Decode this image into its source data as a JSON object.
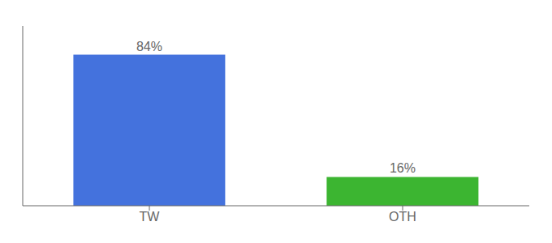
{
  "chart_data": {
    "type": "bar",
    "categories": [
      "TW",
      "OTH"
    ],
    "values": [
      84,
      16
    ],
    "colors": [
      "#4472dd",
      "#3cb531"
    ],
    "ylim": [
      0,
      100
    ],
    "data_labels": true,
    "value_labels": [
      "84%",
      "16%"
    ],
    "tick_labels": "x",
    "grid": false
  }
}
